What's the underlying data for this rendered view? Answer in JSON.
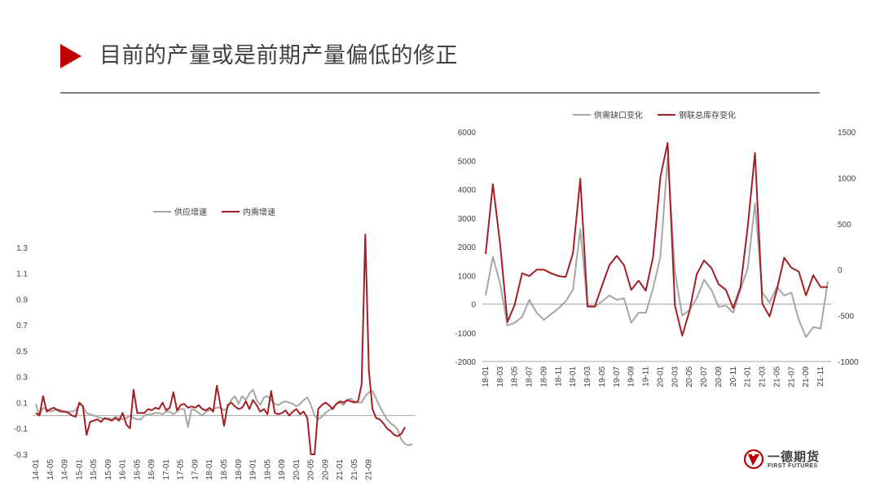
{
  "title": "目前的产量或是前期产量偏低的修正",
  "logo": {
    "name": "一德期货",
    "sub": "FIRST FUTURES",
    "icon": "first-futures-logo-icon"
  },
  "colors": {
    "accent": "#c00000",
    "gray": "#a6a6a6",
    "red": "#a31f24",
    "text": "#404040"
  },
  "chart_data": [
    {
      "type": "line",
      "title": "",
      "legend_position": "top",
      "ylim": [
        -0.3,
        1.4
      ],
      "yticks": [
        "1.3",
        "1.1",
        "0.9",
        "0.7",
        "0.5",
        "0.3",
        "0.1",
        "-0.1",
        "-0.3"
      ],
      "ytick_values": [
        1.3,
        1.1,
        0.9,
        0.7,
        0.5,
        0.3,
        0.1,
        -0.1,
        -0.3
      ],
      "x_start": "2014-01",
      "x_labels": [
        "14-01",
        "14-05",
        "14-09",
        "15-01",
        "15-05",
        "15-09",
        "16-01",
        "16-05",
        "16-09",
        "17-01",
        "17-05",
        "17-09",
        "18-01",
        "18-05",
        "18-09",
        "19-01",
        "19-05",
        "19-09",
        "20-01",
        "20-05",
        "20-09",
        "21-01",
        "21-05",
        "21-09"
      ],
      "series": [
        {
          "name": "供应增速",
          "color": "#a6a6a6",
          "values": [
            0.09,
            0.0,
            0.06,
            0.05,
            0.03,
            0.04,
            0.05,
            0.04,
            0.03,
            0.03,
            0.03,
            0.04,
            0.09,
            0.07,
            0.02,
            0.01,
            0.0,
            -0.01,
            -0.02,
            -0.03,
            -0.02,
            -0.03,
            -0.01,
            -0.02,
            -0.03,
            -0.02,
            0.0,
            -0.02,
            -0.03,
            -0.03,
            0.0,
            0.01,
            0.01,
            0.02,
            0.02,
            0.01,
            0.03,
            0.03,
            0.01,
            0.03,
            0.05,
            0.05,
            -0.09,
            0.05,
            0.04,
            0.02,
            0.0,
            0.03,
            0.04,
            0.05,
            0.06,
            0.06,
            0.04,
            0.06,
            0.12,
            0.15,
            0.09,
            0.15,
            0.12,
            0.17,
            0.2,
            0.12,
            0.08,
            0.14,
            0.15,
            0.12,
            0.09,
            0.08,
            0.1,
            0.11,
            0.1,
            0.09,
            0.07,
            0.09,
            0.12,
            0.14,
            0.08,
            0.0,
            -0.03,
            -0.01,
            0.02,
            0.04,
            0.06,
            0.09,
            0.1,
            0.08,
            0.12,
            0.13,
            0.11,
            0.1,
            0.1,
            0.15,
            0.18,
            0.19,
            0.13,
            0.07,
            0.02,
            -0.03,
            -0.06,
            -0.08,
            -0.11,
            -0.19,
            -0.22,
            -0.23,
            -0.22
          ]
        },
        {
          "name": "内需增速",
          "color": "#a31f24",
          "values": [
            0.02,
            0.0,
            0.15,
            0.03,
            0.05,
            0.06,
            0.04,
            0.03,
            0.03,
            0.02,
            0.0,
            -0.01,
            0.1,
            0.07,
            -0.15,
            -0.05,
            -0.04,
            -0.03,
            -0.05,
            -0.02,
            -0.03,
            -0.04,
            -0.02,
            -0.04,
            0.02,
            -0.07,
            -0.1,
            0.2,
            0.02,
            0.02,
            0.02,
            0.05,
            0.04,
            0.06,
            0.05,
            0.1,
            0.04,
            0.06,
            0.18,
            0.04,
            0.08,
            0.09,
            0.06,
            0.07,
            0.06,
            0.08,
            0.05,
            0.04,
            0.06,
            0.03,
            0.23,
            0.08,
            -0.08,
            0.08,
            0.1,
            0.07,
            0.05,
            0.06,
            0.11,
            0.05,
            0.12,
            0.08,
            0.03,
            0.05,
            0.01,
            0.19,
            0.02,
            0.01,
            0.02,
            0.04,
            0.0,
            0.03,
            0.05,
            0.01,
            0.03,
            -0.02,
            -0.3,
            -0.3,
            0.05,
            0.08,
            0.1,
            0.08,
            0.05,
            0.09,
            0.11,
            0.1,
            0.12,
            0.11,
            0.1,
            0.11,
            0.24,
            1.4,
            0.35,
            0.05,
            -0.02,
            -0.03,
            -0.06,
            -0.1,
            -0.12,
            -0.15,
            -0.16,
            -0.14,
            -0.09
          ]
        }
      ]
    },
    {
      "type": "line",
      "title": "",
      "legend_position": "top",
      "ylim_left": [
        -2000,
        6000
      ],
      "ylim_right": [
        -1000,
        1500
      ],
      "yticks_left": [
        "6000",
        "5000",
        "4000",
        "3000",
        "2000",
        "1000",
        "0",
        "-1000",
        "-2000"
      ],
      "ytick_left_values": [
        6000,
        5000,
        4000,
        3000,
        2000,
        1000,
        0,
        -1000,
        -2000
      ],
      "yticks_right": [
        "1500",
        "1000",
        "500",
        "0",
        "-500",
        "-1000"
      ],
      "ytick_right_values": [
        1500,
        1000,
        500,
        0,
        -500,
        -1000
      ],
      "x_start": "2018-01",
      "x_labels": [
        "18-01",
        "18-03",
        "18-05",
        "18-07",
        "18-09",
        "18-11",
        "19-01",
        "19-03",
        "19-05",
        "19-07",
        "19-09",
        "19-11",
        "20-01",
        "20-03",
        "20-05",
        "20-07",
        "20-09",
        "20-11",
        "21-01",
        "21-03",
        "21-05",
        "21-07",
        "21-09",
        "21-11"
      ],
      "series": [
        {
          "name": "供需缺口变化",
          "axis": "left",
          "color": "#a6a6a6",
          "values": [
            300,
            1650,
            700,
            -750,
            -650,
            -450,
            150,
            -300,
            -550,
            -350,
            -150,
            100,
            500,
            2600,
            -100,
            -100,
            100,
            300,
            150,
            200,
            -650,
            -300,
            -300,
            550,
            1650,
            5100,
            1100,
            -400,
            -200,
            200,
            850,
            500,
            -100,
            -50,
            -300,
            500,
            1250,
            3500,
            400,
            50,
            600,
            300,
            400,
            -550,
            -1150,
            -800,
            -850,
            800
          ]
        },
        {
          "name": "钢联总库存变化",
          "axis": "right",
          "color": "#a31f24",
          "values": [
            170,
            930,
            270,
            -570,
            -380,
            -40,
            -70,
            0,
            0,
            -40,
            -70,
            -80,
            180,
            990,
            -400,
            -400,
            -170,
            50,
            150,
            50,
            -220,
            -120,
            -230,
            140,
            1010,
            1380,
            -390,
            -720,
            -450,
            -50,
            100,
            20,
            -160,
            -220,
            -420,
            -190,
            470,
            1270,
            -370,
            -510,
            -220,
            130,
            20,
            -20,
            -280,
            -60,
            -190,
            -190
          ]
        }
      ]
    }
  ]
}
